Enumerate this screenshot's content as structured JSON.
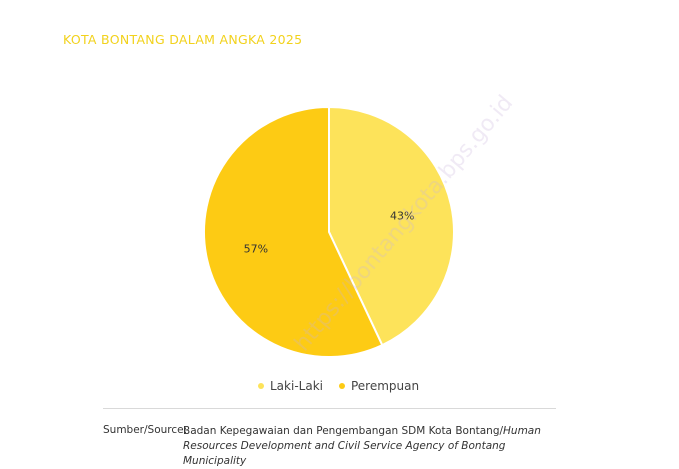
{
  "header": {
    "title": "KOTA BONTANG DALAM ANGKA 2025"
  },
  "colors": {
    "title": "#f2d21c",
    "laki_laki": "#fde35a",
    "perempuan": "#fdcb14",
    "label_text": "#333333"
  },
  "chart_data": {
    "type": "pie",
    "categories": [
      "Laki-Laki",
      "Perempuan"
    ],
    "values": [
      43,
      57
    ],
    "labels": [
      "43%",
      "57%"
    ],
    "legend_placement": "bottom"
  },
  "legend": {
    "items": [
      "Laki-Laki",
      "Perempuan"
    ]
  },
  "source": {
    "label": "Sumber/Source:",
    "text_regular": "Badan Kepegawaian dan Pengembangan SDM Kota Bontang/",
    "text_italic": "Human Resources Development and Civil Service Agency of Bontang Municipality"
  },
  "watermark": {
    "text": "https://bontangkota.bps.go.id"
  }
}
